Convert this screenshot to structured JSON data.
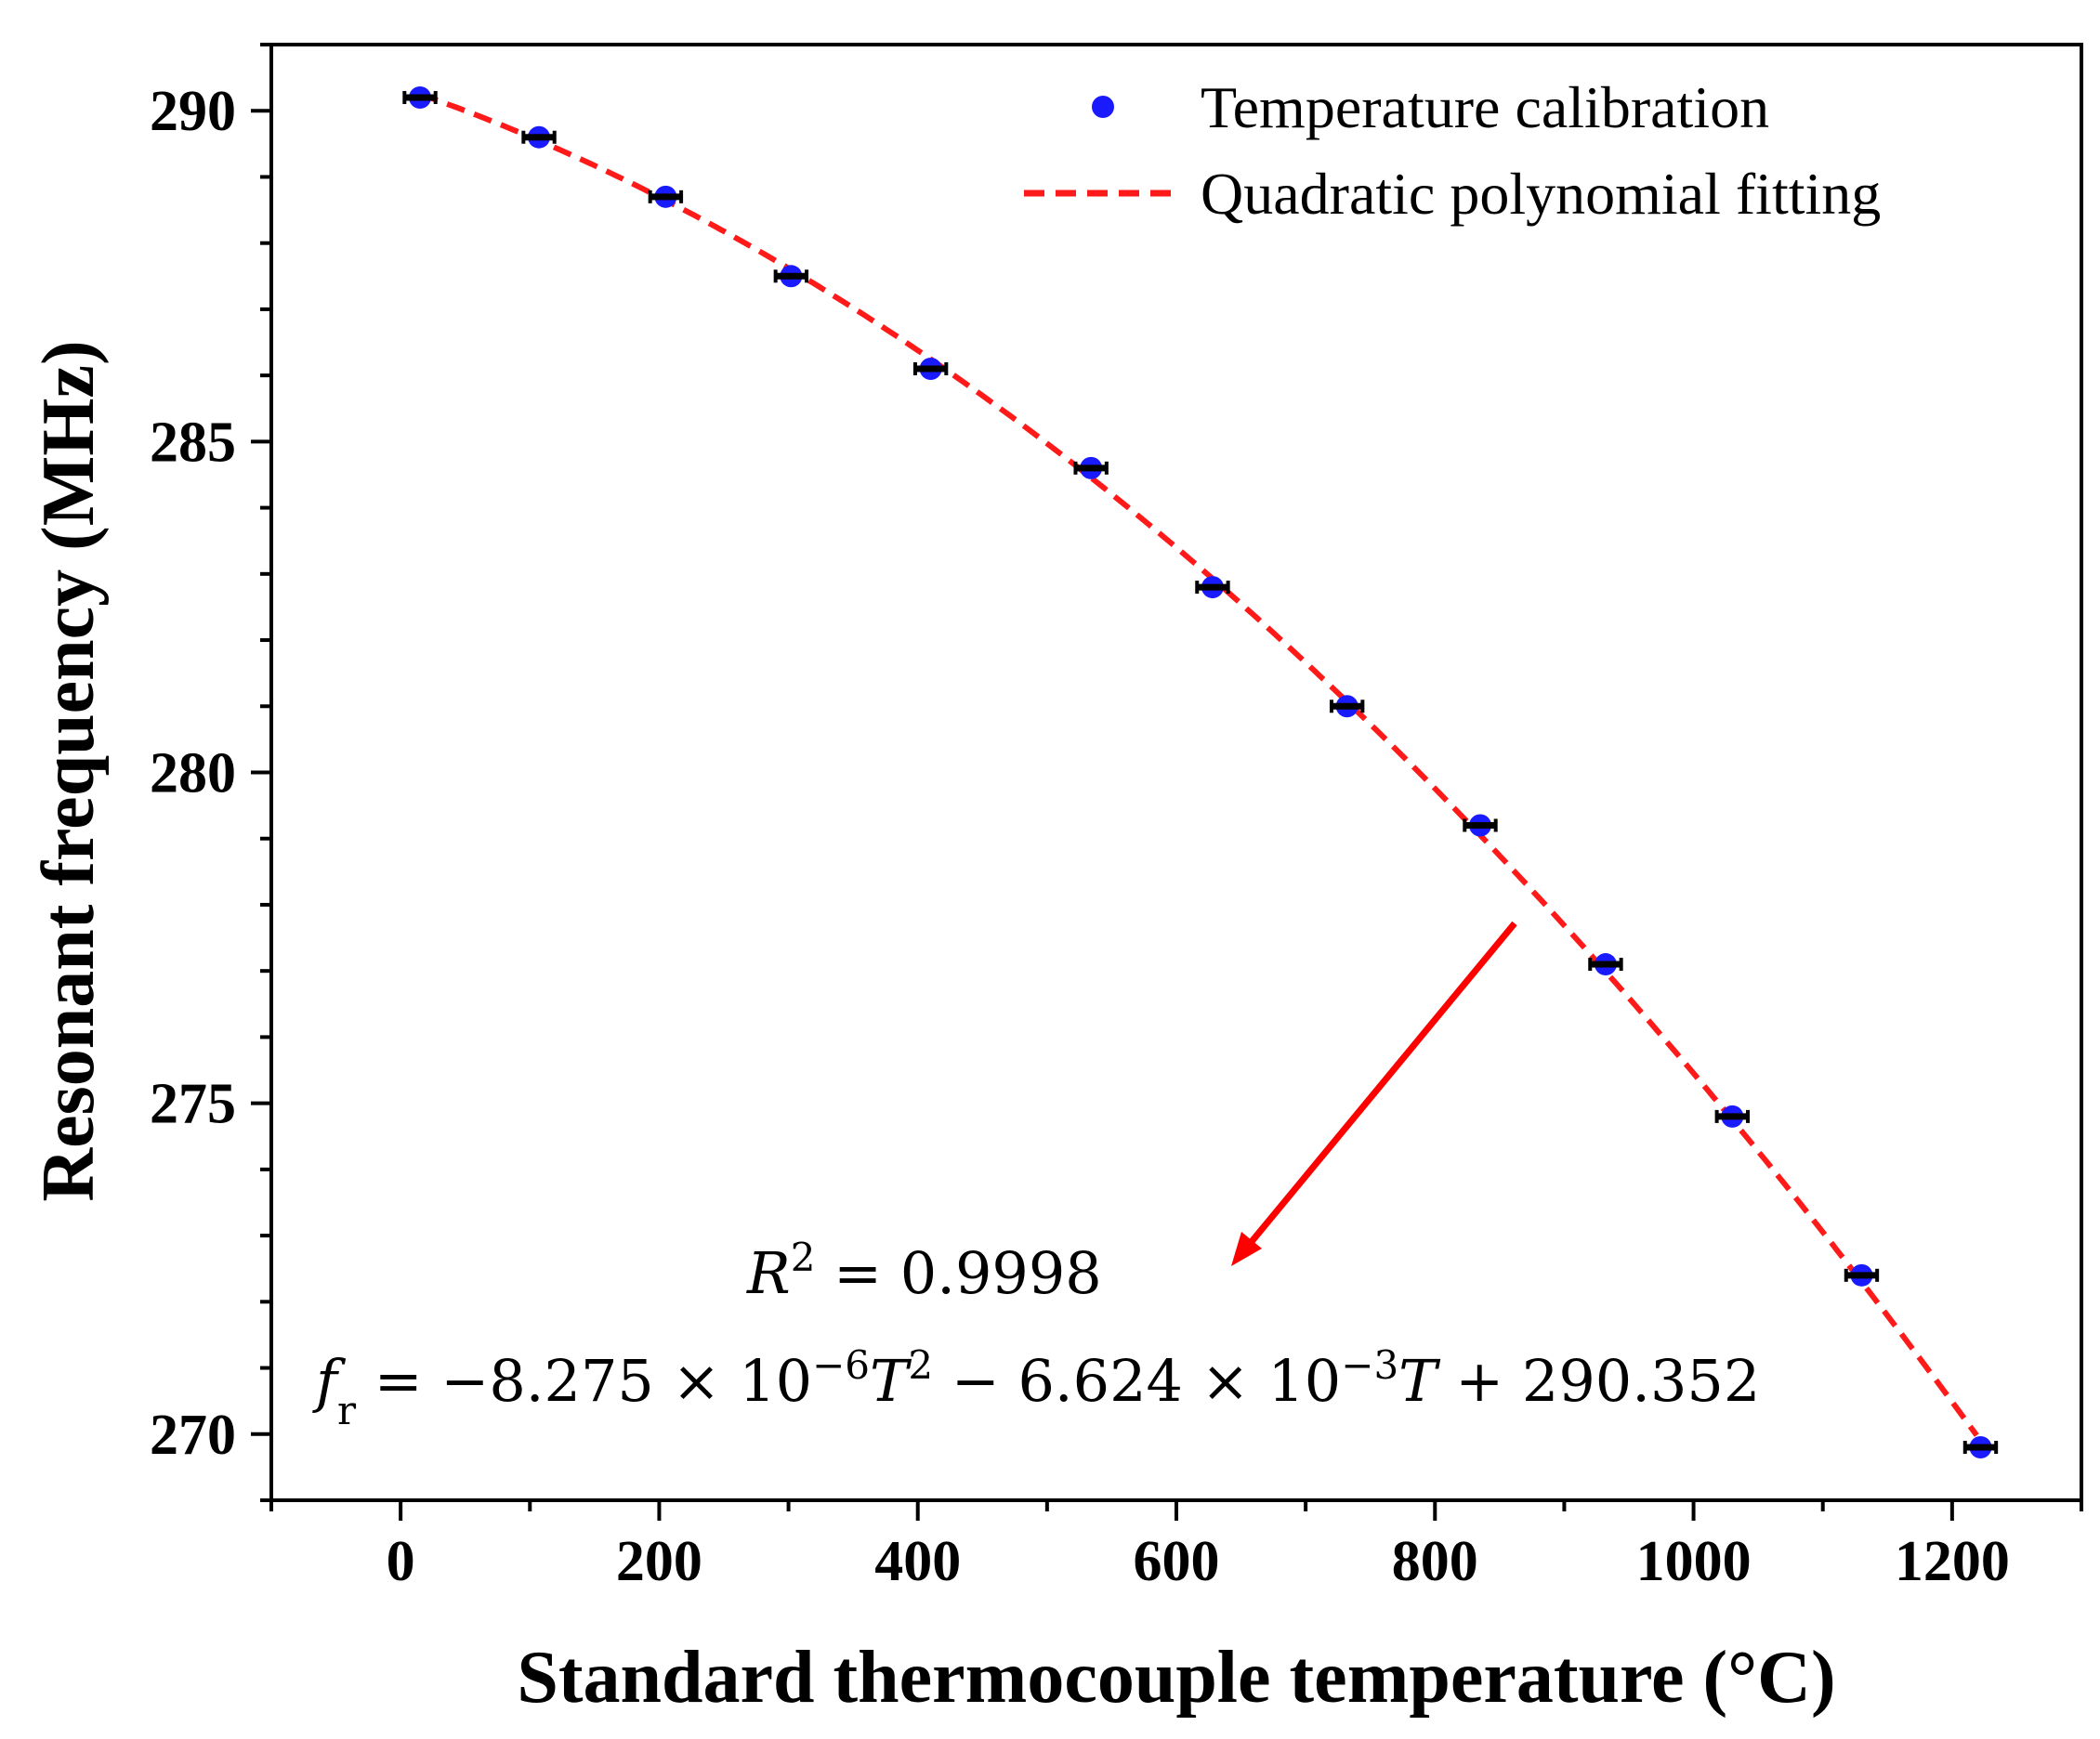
{
  "chart_data": {
    "type": "scatter",
    "title": "",
    "xlabel": "Standard thermocouple temperature (°C)",
    "ylabel": "Resonant frequency (MHz)",
    "xlim": [
      -100,
      1300
    ],
    "ylim": [
      269,
      291
    ],
    "x_ticks": [
      0,
      200,
      400,
      600,
      800,
      1000,
      1200
    ],
    "x_tick_labels": [
      "0",
      "200",
      "400",
      "600",
      "800",
      "1000",
      "1200"
    ],
    "y_ticks": [
      270,
      275,
      280,
      285,
      290
    ],
    "y_tick_labels": [
      "270",
      "275",
      "280",
      "285",
      "290"
    ],
    "x_minor_step": 100,
    "y_minor_step": 1,
    "series": [
      {
        "name": "Temperature calibration",
        "style": "marker",
        "color": "#1a1aff",
        "x": [
          15,
          107,
          205,
          302,
          410,
          534,
          628,
          732,
          835,
          932,
          1030,
          1130,
          1222
        ],
        "y": [
          290.2,
          289.6,
          288.7,
          287.5,
          286.1,
          284.6,
          282.8,
          281.0,
          279.2,
          277.1,
          274.8,
          272.4,
          269.8
        ],
        "error_x": 12
      },
      {
        "name": "Quadratic polynomial fitting",
        "style": "dashed-line",
        "color": "#ff1a1a",
        "coefficients": {
          "a": -8.275e-06,
          "b": -0.006624,
          "c": 290.352
        },
        "x_range": [
          15,
          1222
        ]
      }
    ],
    "legend_position": "top-right",
    "annotations": {
      "r_squared": {
        "label": "R",
        "sup": "2",
        "rest": " = 0.9998"
      },
      "equation": {
        "f": "f",
        "f_sub": "r",
        "part1": " = −8.275 × 10",
        "exp1": "−6",
        "t1": "T",
        "t1_sup": "2",
        "part2": " − 6.624 × 10",
        "exp2": "−3",
        "t2": "T",
        "part3": " + 290.352"
      },
      "arrow_color": "#ff0000"
    }
  }
}
